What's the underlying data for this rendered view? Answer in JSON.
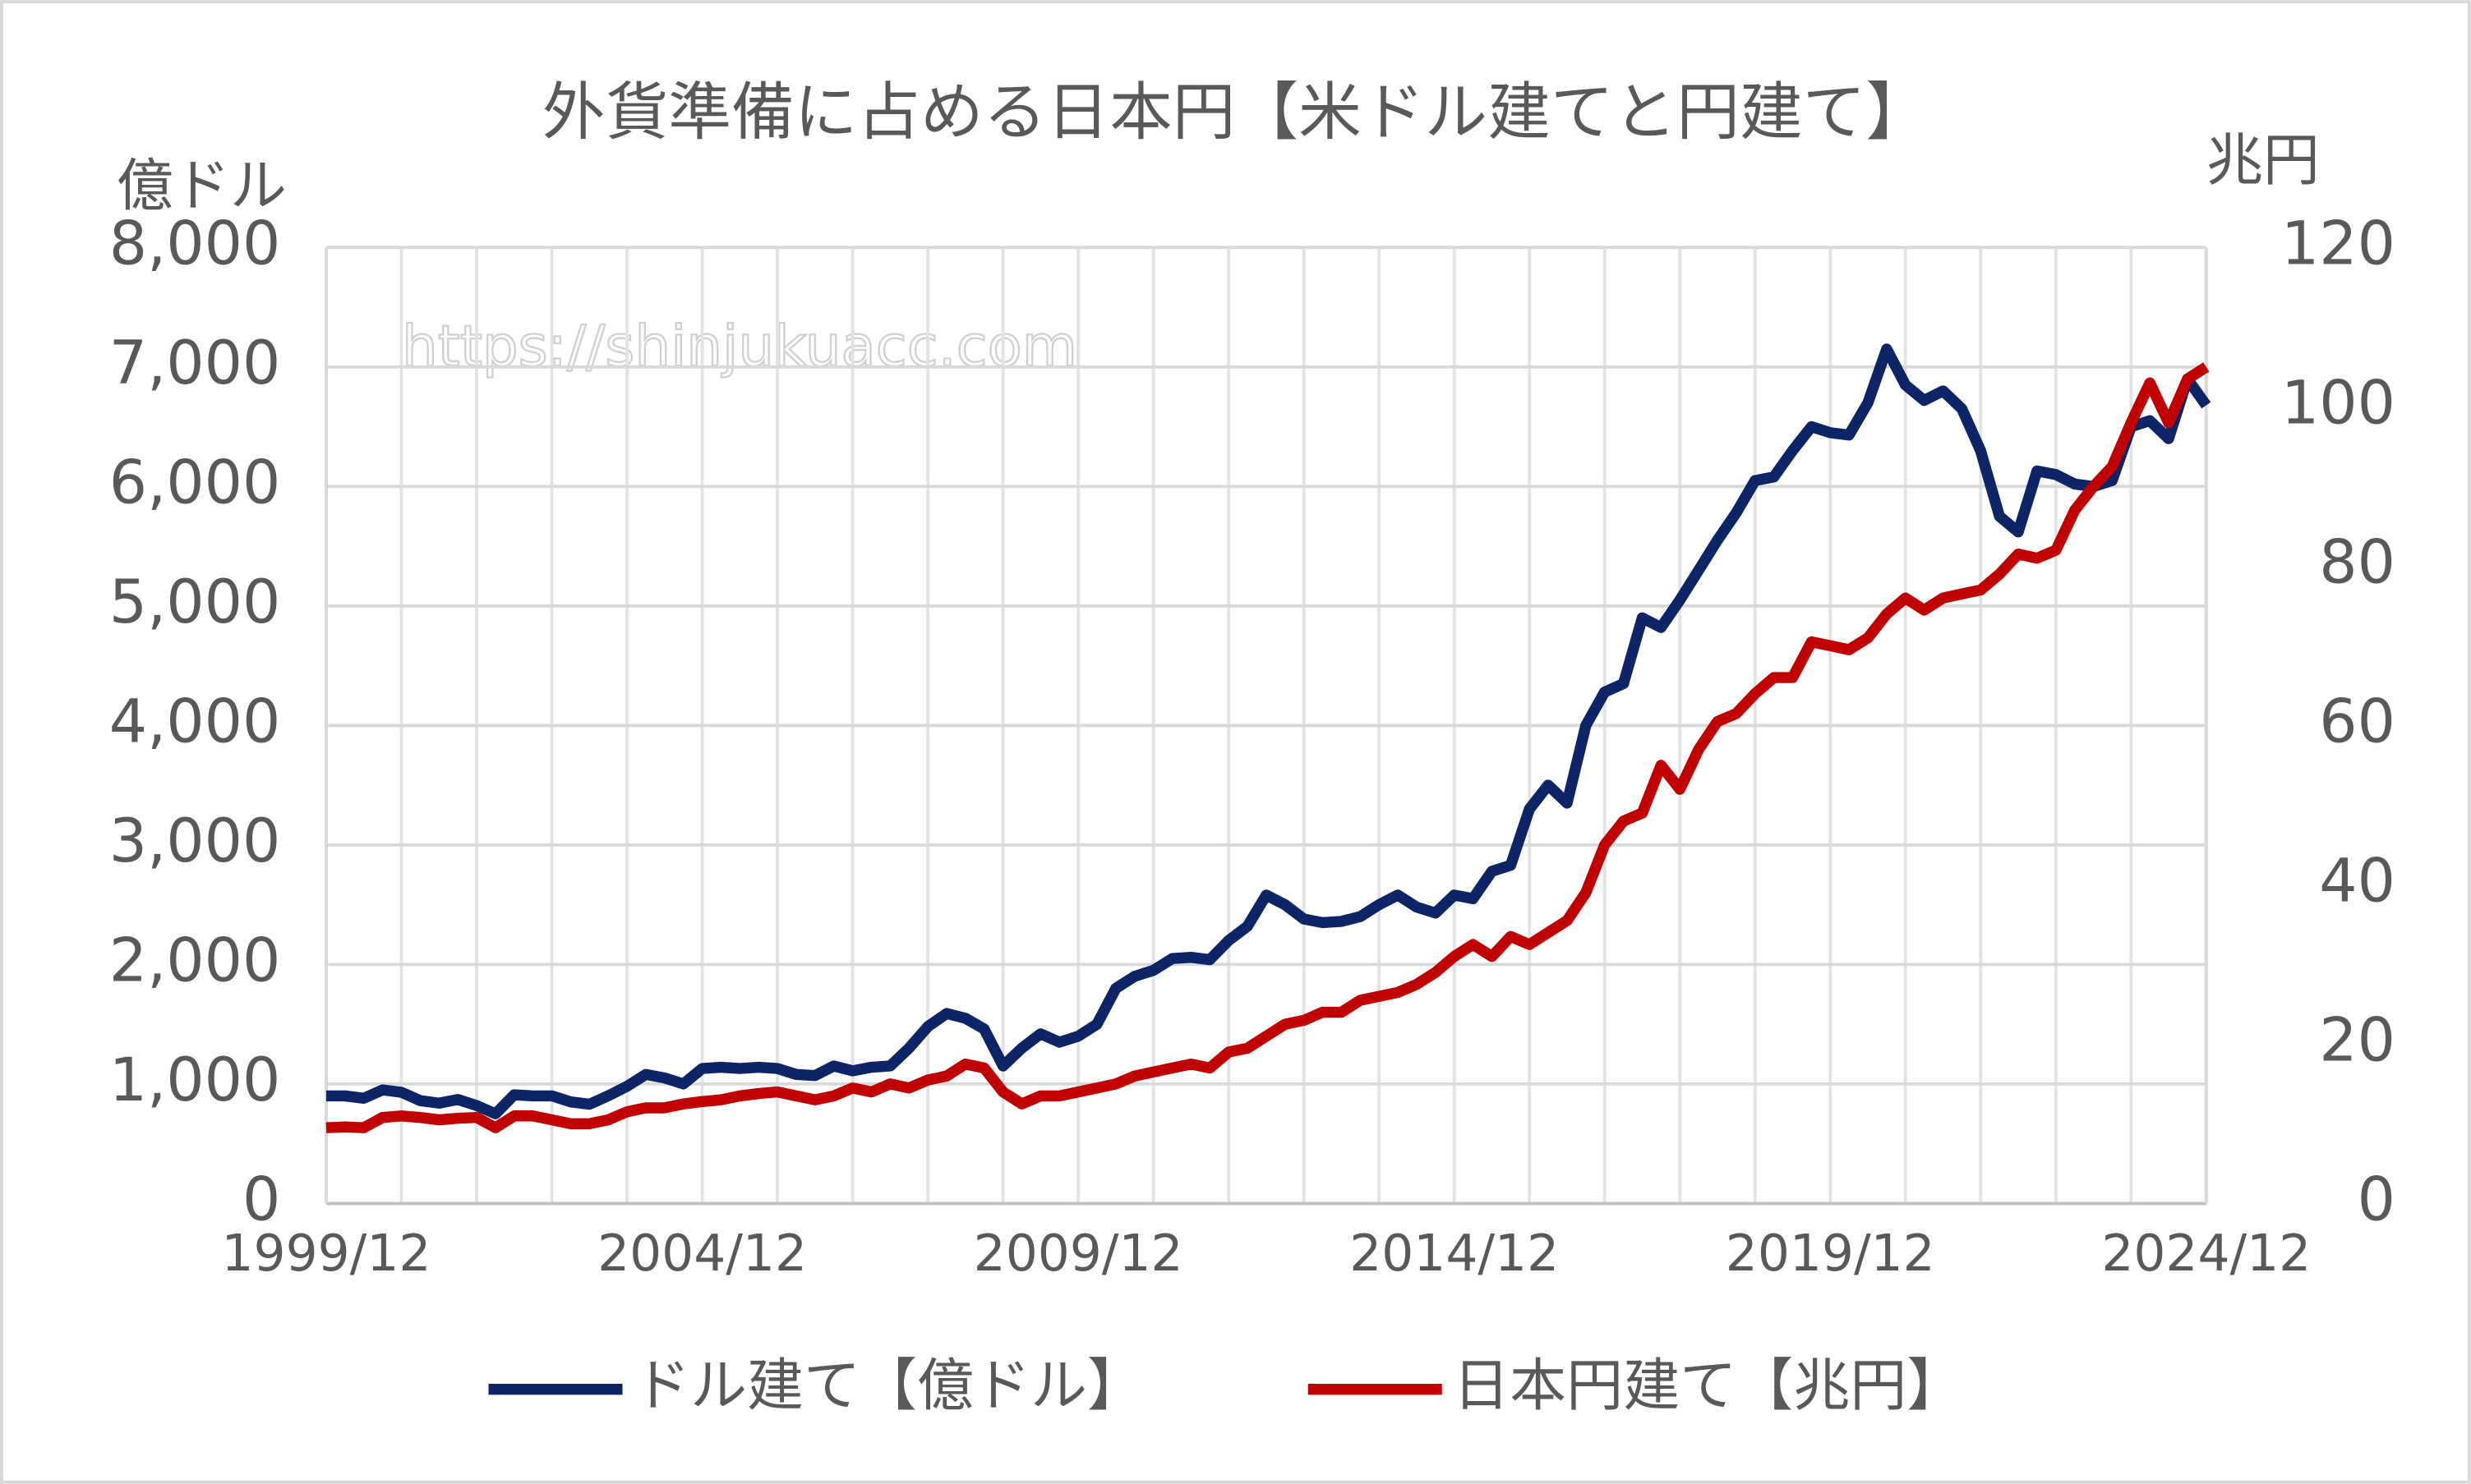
{
  "chart_data": {
    "type": "line",
    "title": "外貨準備に占める日本円【米ドル建てと円建て】",
    "ylabel": "億ドル",
    "y2label": "兆円",
    "annotation": "https://shinjukuacc.com",
    "categories": [
      "1999/12",
      null,
      null,
      null,
      null,
      null,
      null,
      null,
      null,
      null,
      null,
      null,
      null,
      null,
      null,
      null,
      null,
      null,
      null,
      null,
      "2004/12",
      null,
      null,
      null,
      null,
      null,
      null,
      null,
      null,
      null,
      null,
      null,
      null,
      null,
      null,
      null,
      null,
      null,
      null,
      null,
      "2009/12",
      null,
      null,
      null,
      null,
      null,
      null,
      null,
      null,
      null,
      null,
      null,
      null,
      null,
      null,
      null,
      null,
      null,
      null,
      null,
      "2014/12",
      null,
      null,
      null,
      null,
      null,
      null,
      null,
      null,
      null,
      null,
      null,
      null,
      null,
      null,
      null,
      null,
      null,
      null,
      null,
      "2019/12",
      null,
      null,
      null,
      null,
      null,
      null,
      null,
      null,
      null,
      null,
      null,
      null,
      null,
      null,
      null,
      null,
      null,
      null,
      null,
      "2024/12"
    ],
    "series": [
      {
        "name": "ドル建て【億ドル】",
        "color": "#0d2466",
        "values": [
          900,
          900,
          880,
          950,
          930,
          860,
          840,
          870,
          820,
          750,
          910,
          900,
          900,
          850,
          830,
          900,
          980,
          1080,
          1050,
          1000,
          1130,
          1140,
          1130,
          1140,
          1130,
          1080,
          1070,
          1150,
          1110,
          1140,
          1150,
          1300,
          1480,
          1590,
          1550,
          1460,
          1150,
          1300,
          1420,
          1350,
          1400,
          1500,
          1800,
          1900,
          1950,
          2050,
          2060,
          2040,
          2200,
          2320,
          2580,
          2500,
          2380,
          2350,
          2360,
          2400,
          2500,
          2580,
          2480,
          2430,
          2580,
          2550,
          2780,
          2830,
          3300,
          3500,
          3350,
          4000,
          4280,
          4350,
          4900,
          4820,
          5050,
          5300,
          5550,
          5780,
          6050,
          6080,
          6300,
          6500,
          6450,
          6430,
          6700,
          7150,
          6850,
          6720,
          6800,
          6650,
          6300,
          5750,
          5620,
          6130,
          6100,
          6020,
          6000,
          6050,
          6500,
          6550,
          6400,
          6900,
          6680
        ]
      },
      {
        "name": "日本円建て【兆円】",
        "color": "#c00000",
        "axis": "y2",
        "values": [
          9.5,
          9.6,
          9.5,
          10.8,
          11,
          10.8,
          10.5,
          10.7,
          10.8,
          9.5,
          11,
          11,
          10.5,
          10,
          10,
          10.5,
          11.5,
          12,
          12,
          12.5,
          12.8,
          13,
          13.5,
          13.8,
          14,
          13.5,
          13,
          13.5,
          14.5,
          14,
          15,
          14.5,
          15.5,
          16,
          17.5,
          17,
          14,
          12.5,
          13.5,
          13.5,
          14,
          14.5,
          15,
          16,
          16.5,
          17,
          17.5,
          17,
          19,
          19.5,
          21,
          22.5,
          23,
          24,
          24,
          25.5,
          26,
          26.5,
          27.5,
          29,
          31,
          32.5,
          31,
          33.5,
          32.5,
          34,
          35.5,
          39,
          45,
          48,
          49,
          55,
          52,
          57,
          60.5,
          61.5,
          64,
          66,
          66,
          70.5,
          70,
          69.5,
          71,
          74,
          76,
          74.5,
          76,
          76.5,
          77,
          79,
          81.5,
          81,
          82,
          87,
          90,
          92.5,
          98,
          103,
          98,
          103.5,
          105
        ]
      }
    ],
    "ylim": [
      0,
      8000
    ],
    "yticks": [
      0,
      {
        "value": 1000,
        "label": "1,000"
      },
      {
        "value": 2000,
        "label": "2,000"
      },
      {
        "value": 3000,
        "label": "3,000"
      },
      {
        "value": 4000,
        "label": "4,000"
      },
      {
        "value": 5000,
        "label": "5,000"
      },
      {
        "value": 6000,
        "label": "6,000"
      },
      {
        "value": 7000,
        "label": "7,000"
      },
      {
        "value": 8000,
        "label": "8,000"
      }
    ],
    "y2lim": [
      0,
      120
    ],
    "y2ticks": [
      0,
      20,
      40,
      60,
      80,
      100,
      120
    ],
    "grid": true,
    "legend": "bottom"
  }
}
